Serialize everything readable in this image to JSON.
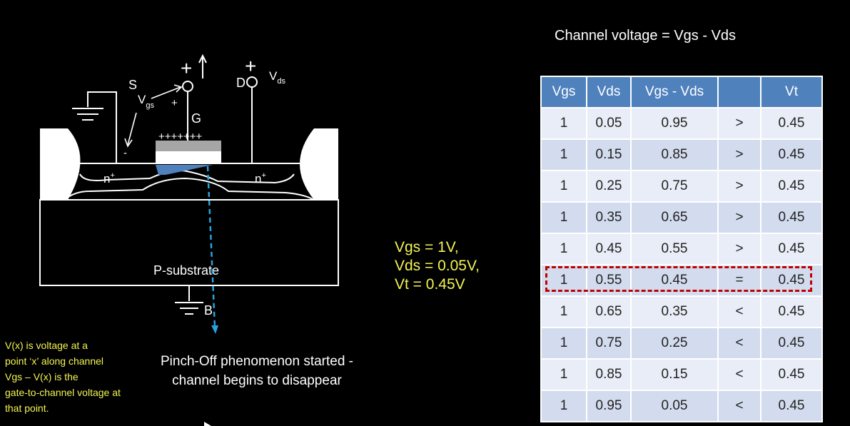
{
  "equation_title": "Channel voltage = Vgs - Vds",
  "diagram": {
    "source_label": "S",
    "gate_label": "G",
    "drain_label": "D",
    "body_label": "B",
    "vgs_symbol": "V",
    "vgs_subscript": "gs",
    "vds_symbol": "V",
    "vds_subscript": "ds",
    "plus_sign": "+",
    "minus_sign": "-",
    "gate_charges": "+++++++",
    "n_plus": "n",
    "n_plus_sup": "+",
    "substrate_label": "P-substrate"
  },
  "params": {
    "vgs": "Vgs = 1V,",
    "vds": "Vds = 0.05V,",
    "vt": "Vt = 0.45V"
  },
  "notes": [
    "V(x) is voltage at a",
    "point ‘x’ along channel",
    "Vgs – V(x) is the",
    "gate-to-channel voltage at",
    "that point."
  ],
  "pinch_off_text": "Pinch-Off phenomenon started - channel begins to disappear",
  "table": {
    "headers": [
      "Vgs",
      "Vds",
      "Vgs - Vds",
      "",
      "Vt"
    ],
    "rows": [
      [
        "1",
        "0.05",
        "0.95",
        ">",
        "0.45"
      ],
      [
        "1",
        "0.15",
        "0.85",
        ">",
        "0.45"
      ],
      [
        "1",
        "0.25",
        "0.75",
        ">",
        "0.45"
      ],
      [
        "1",
        "0.35",
        "0.65",
        ">",
        "0.45"
      ],
      [
        "1",
        "0.45",
        "0.55",
        ">",
        "0.45"
      ],
      [
        "1",
        "0.55",
        "0.45",
        "=",
        "0.45"
      ],
      [
        "1",
        "0.65",
        "0.35",
        "<",
        "0.45"
      ],
      [
        "1",
        "0.75",
        "0.25",
        "<",
        "0.45"
      ],
      [
        "1",
        "0.85",
        "0.15",
        "<",
        "0.45"
      ],
      [
        "1",
        "0.95",
        "0.05",
        "<",
        "0.45"
      ]
    ],
    "highlighted_row": 5
  },
  "colors": {
    "text_yellow": "#f4f453",
    "table_header": "#4f81bd",
    "highlight_border": "#c00000",
    "channel_blue": "#4f81bd",
    "arrow_blue": "#29a3e0"
  }
}
